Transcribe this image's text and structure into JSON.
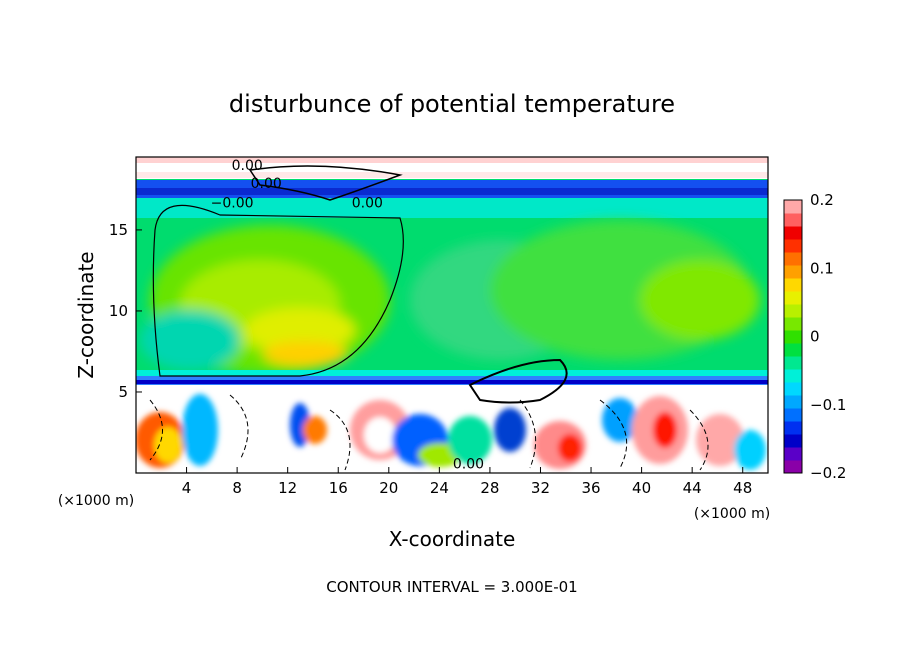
{
  "chart_data": {
    "type": "heatmap",
    "title": "disturbunce of potential temperature",
    "xlabel": "X-coordinate",
    "ylabel": "Z-coordinate",
    "x_unit_left": "(×1000 m)",
    "x_unit_right": "(×1000 m)",
    "footer": "CONTOUR INTERVAL = 3.000E-01",
    "xlim": [
      0,
      50
    ],
    "ylim": [
      0,
      19.5
    ],
    "x_ticks": [
      4,
      8,
      12,
      16,
      20,
      24,
      28,
      32,
      36,
      40,
      44,
      48
    ],
    "y_ticks": [
      5,
      10,
      15
    ],
    "colorbar": {
      "min": -0.2,
      "max": 0.2,
      "ticks": [
        {
          "value": 0.2,
          "label": "0.2"
        },
        {
          "value": 0.1,
          "label": "0.1"
        },
        {
          "value": 0,
          "label": "0"
        },
        {
          "value": -0.1,
          "label": "−0.1"
        },
        {
          "value": -0.2,
          "label": "−0.2"
        }
      ],
      "colors": [
        "#8a00a8",
        "#5a00c8",
        "#0000c8",
        "#0030f0",
        "#0070ff",
        "#00a8ff",
        "#00d8ff",
        "#00f0d8",
        "#00e890",
        "#00e040",
        "#30e000",
        "#78e800",
        "#b8f000",
        "#e8f000",
        "#ffd800",
        "#ffa000",
        "#ff7000",
        "#ff3000",
        "#f00000",
        "#ff6060",
        "#ffa8a8"
      ]
    },
    "contour_labels": [
      {
        "text": "0.00",
        "x": 8.8,
        "z": 19.0
      },
      {
        "text": "0.00",
        "x": 10.3,
        "z": 17.9
      },
      {
        "text": "−0.00",
        "x": 7.6,
        "z": 16.7
      },
      {
        "text": "0.00",
        "x": 18.3,
        "z": 16.7
      },
      {
        "text": "0.00",
        "x": 26.3,
        "z": 0.6
      }
    ],
    "field_description_regions": [
      {
        "x0": 0,
        "x1": 50,
        "z0": 0,
        "z1": 6,
        "value": 0.2
      },
      {
        "x0": 0,
        "x1": 50,
        "z0": 6,
        "z1": 16.5,
        "value": 0.03
      },
      {
        "x0": 0,
        "x1": 50,
        "z0": 16.5,
        "z1": 19.5,
        "value": -0.15
      }
    ]
  }
}
